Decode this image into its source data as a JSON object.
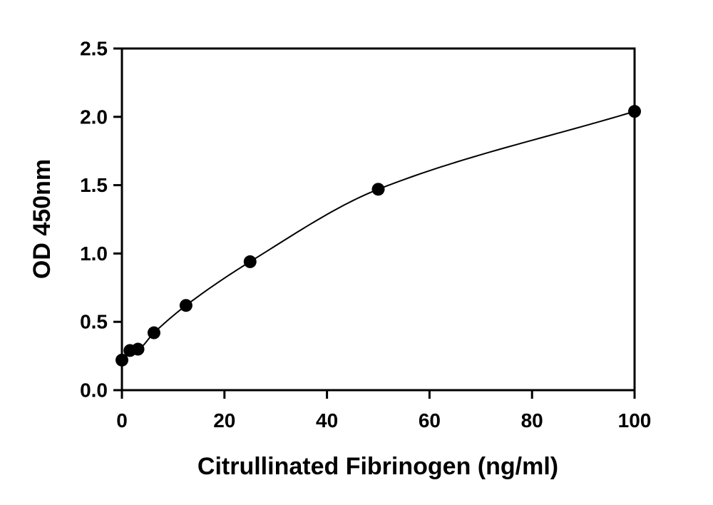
{
  "chart_data": {
    "type": "scatter",
    "title": "",
    "xlabel": "Citrullinated Fibrinogen (ng/ml)",
    "ylabel": "OD 450nm",
    "xlim": [
      0,
      100
    ],
    "ylim": [
      0,
      2.5
    ],
    "x_ticks": [
      0,
      20,
      40,
      60,
      80,
      100
    ],
    "y_ticks": [
      0.0,
      0.5,
      1.0,
      1.5,
      2.0,
      2.5
    ],
    "x_tick_labels": [
      "0",
      "20",
      "40",
      "60",
      "80",
      "100"
    ],
    "y_tick_labels": [
      "0.0",
      "0.5",
      "1.0",
      "1.5",
      "2.0",
      "2.5"
    ],
    "grid": false,
    "legend": "none",
    "series": [
      {
        "x": [
          0,
          1.56,
          3.13,
          6.25,
          12.5,
          25,
          50,
          100
        ],
        "y": [
          0.22,
          0.29,
          0.3,
          0.42,
          0.62,
          0.94,
          1.47,
          2.04
        ],
        "fit_line": true,
        "marker_color": "#000000",
        "line_color": "#000000"
      }
    ]
  }
}
